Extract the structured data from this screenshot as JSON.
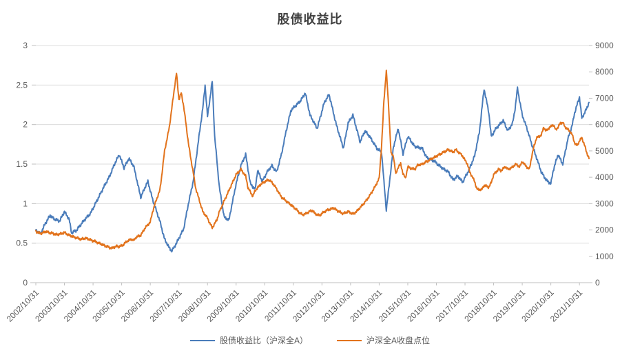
{
  "chart_data": {
    "type": "line",
    "title": "股债收益比",
    "x_tick_labels": [
      "2002/10/31",
      "2003/10/31",
      "2004/10/31",
      "2005/10/31",
      "2006/10/31",
      "2007/10/31",
      "2008/10/31",
      "2009/10/31",
      "2010/10/31",
      "2011/10/31",
      "2012/10/31",
      "2013/10/31",
      "2014/10/31",
      "2015/10/31",
      "2016/10/31",
      "2017/10/31",
      "2018/10/31",
      "2019/10/31",
      "2020/10/31",
      "2021/10/31"
    ],
    "x_months_total": 232,
    "x_months_per_tick": 12,
    "y_left": {
      "min": 0,
      "max": 3,
      "ticks": [
        0,
        0.5,
        1,
        1.5,
        2,
        2.5,
        3
      ]
    },
    "y_right": {
      "min": 0,
      "max": 9000,
      "ticks": [
        0,
        1000,
        2000,
        3000,
        4000,
        5000,
        6000,
        7000,
        8000,
        9000
      ]
    },
    "grid": "horizontal",
    "legend_position": "bottom",
    "colors": {
      "ratio_blue": "#4a7cba",
      "close_orange": "#e2731c",
      "grid": "#dcdcdc",
      "axis": "#bfbfbf",
      "text": "#595959",
      "title": "#404040"
    },
    "series": [
      {
        "name": "股债收益比（沪深全A）",
        "axis": "left",
        "color": "#4a7cba",
        "keypoints": [
          [
            0,
            0.66
          ],
          [
            2,
            0.62
          ],
          [
            4,
            0.75
          ],
          [
            6,
            0.85
          ],
          [
            8,
            0.8
          ],
          [
            10,
            0.78
          ],
          [
            12,
            0.9
          ],
          [
            13,
            0.85
          ],
          [
            14,
            0.8
          ],
          [
            15,
            0.63
          ],
          [
            17,
            0.66
          ],
          [
            20,
            0.78
          ],
          [
            23,
            0.88
          ],
          [
            25,
            1.0
          ],
          [
            28,
            1.18
          ],
          [
            31,
            1.35
          ],
          [
            33,
            1.5
          ],
          [
            35,
            1.62
          ],
          [
            37,
            1.45
          ],
          [
            39,
            1.57
          ],
          [
            41,
            1.48
          ],
          [
            44,
            1.08
          ],
          [
            46,
            1.22
          ],
          [
            47,
            1.28
          ],
          [
            49,
            1.05
          ],
          [
            52,
            0.78
          ],
          [
            54,
            0.55
          ],
          [
            56,
            0.44
          ],
          [
            57,
            0.4
          ],
          [
            59,
            0.5
          ],
          [
            62,
            0.68
          ],
          [
            64,
            1.0
          ],
          [
            66,
            1.28
          ],
          [
            68,
            1.75
          ],
          [
            70,
            2.2
          ],
          [
            71,
            2.5
          ],
          [
            72,
            2.1
          ],
          [
            74,
            2.55
          ],
          [
            75,
            1.85
          ],
          [
            77,
            1.2
          ],
          [
            79,
            0.83
          ],
          [
            81,
            0.79
          ],
          [
            82,
            0.95
          ],
          [
            84,
            1.25
          ],
          [
            86,
            1.48
          ],
          [
            88,
            1.62
          ],
          [
            90,
            1.25
          ],
          [
            92,
            1.18
          ],
          [
            93,
            1.42
          ],
          [
            95,
            1.28
          ],
          [
            97,
            1.4
          ],
          [
            99,
            1.48
          ],
          [
            101,
            1.4
          ],
          [
            103,
            1.62
          ],
          [
            105,
            1.92
          ],
          [
            107,
            2.18
          ],
          [
            109,
            2.24
          ],
          [
            111,
            2.3
          ],
          [
            113,
            2.4
          ],
          [
            115,
            2.12
          ],
          [
            118,
            1.95
          ],
          [
            121,
            2.28
          ],
          [
            123,
            2.38
          ],
          [
            126,
            2.0
          ],
          [
            129,
            1.7
          ],
          [
            131,
            2.02
          ],
          [
            133,
            2.12
          ],
          [
            136,
            1.78
          ],
          [
            138,
            1.92
          ],
          [
            140,
            1.85
          ],
          [
            143,
            1.7
          ],
          [
            145,
            1.65
          ],
          [
            146,
            1.28
          ],
          [
            147,
            0.92
          ],
          [
            149,
            1.45
          ],
          [
            150,
            1.72
          ],
          [
            152,
            1.95
          ],
          [
            154,
            1.63
          ],
          [
            156,
            1.85
          ],
          [
            159,
            1.72
          ],
          [
            162,
            1.7
          ],
          [
            164,
            1.58
          ],
          [
            167,
            1.54
          ],
          [
            170,
            1.46
          ],
          [
            173,
            1.4
          ],
          [
            175,
            1.3
          ],
          [
            177,
            1.35
          ],
          [
            179,
            1.27
          ],
          [
            182,
            1.45
          ],
          [
            184,
            1.6
          ],
          [
            186,
            1.9
          ],
          [
            188,
            2.45
          ],
          [
            190,
            2.15
          ],
          [
            191,
            1.85
          ],
          [
            193,
            1.95
          ],
          [
            196,
            2.05
          ],
          [
            198,
            1.92
          ],
          [
            200,
            2.02
          ],
          [
            201,
            2.2
          ],
          [
            202,
            2.46
          ],
          [
            204,
            2.12
          ],
          [
            206,
            1.95
          ],
          [
            208,
            1.75
          ],
          [
            210,
            1.58
          ],
          [
            212,
            1.4
          ],
          [
            214,
            1.3
          ],
          [
            216,
            1.25
          ],
          [
            217,
            1.42
          ],
          [
            219,
            1.62
          ],
          [
            221,
            1.5
          ],
          [
            223,
            1.8
          ],
          [
            225,
            2.0
          ],
          [
            226,
            2.15
          ],
          [
            228,
            2.35
          ],
          [
            229,
            2.08
          ],
          [
            231,
            2.2
          ],
          [
            232,
            2.28
          ]
        ]
      },
      {
        "name": "沪深全A收盘点位",
        "axis": "right",
        "color": "#e2731c",
        "keypoints": [
          [
            0,
            1950
          ],
          [
            2,
            1860
          ],
          [
            4,
            1940
          ],
          [
            7,
            1870
          ],
          [
            9,
            1820
          ],
          [
            12,
            1900
          ],
          [
            14,
            1800
          ],
          [
            17,
            1700
          ],
          [
            19,
            1650
          ],
          [
            21,
            1690
          ],
          [
            23,
            1620
          ],
          [
            25,
            1560
          ],
          [
            27,
            1480
          ],
          [
            29,
            1400
          ],
          [
            31,
            1330
          ],
          [
            32,
            1310
          ],
          [
            34,
            1390
          ],
          [
            35,
            1360
          ],
          [
            37,
            1460
          ],
          [
            38,
            1560
          ],
          [
            40,
            1650
          ],
          [
            41,
            1600
          ],
          [
            42,
            1720
          ],
          [
            44,
            1800
          ],
          [
            45,
            1950
          ],
          [
            46,
            2100
          ],
          [
            48,
            2300
          ],
          [
            49,
            2700
          ],
          [
            50,
            3000
          ],
          [
            52,
            3500
          ],
          [
            53,
            4200
          ],
          [
            54,
            5000
          ],
          [
            56,
            5900
          ],
          [
            57,
            6600
          ],
          [
            58,
            7300
          ],
          [
            59,
            7950
          ],
          [
            60,
            6950
          ],
          [
            61,
            7200
          ],
          [
            62,
            6700
          ],
          [
            63,
            6000
          ],
          [
            64,
            5300
          ],
          [
            65,
            4700
          ],
          [
            66,
            4200
          ],
          [
            67,
            3600
          ],
          [
            69,
            3000
          ],
          [
            70,
            2700
          ],
          [
            72,
            2450
          ],
          [
            73,
            2250
          ],
          [
            74,
            2080
          ],
          [
            76,
            2400
          ],
          [
            77,
            2700
          ],
          [
            79,
            3100
          ],
          [
            81,
            3500
          ],
          [
            83,
            3900
          ],
          [
            84,
            4100
          ],
          [
            86,
            4300
          ],
          [
            88,
            4050
          ],
          [
            89,
            3600
          ],
          [
            91,
            3280
          ],
          [
            92,
            3500
          ],
          [
            94,
            3700
          ],
          [
            95,
            3780
          ],
          [
            97,
            3880
          ],
          [
            98,
            3900
          ],
          [
            100,
            3700
          ],
          [
            102,
            3400
          ],
          [
            103,
            3250
          ],
          [
            105,
            3100
          ],
          [
            107,
            2950
          ],
          [
            109,
            2800
          ],
          [
            110,
            2700
          ],
          [
            112,
            2570
          ],
          [
            114,
            2660
          ],
          [
            116,
            2750
          ],
          [
            117,
            2620
          ],
          [
            119,
            2550
          ],
          [
            121,
            2700
          ],
          [
            123,
            2780
          ],
          [
            125,
            2830
          ],
          [
            127,
            2700
          ],
          [
            129,
            2620
          ],
          [
            131,
            2700
          ],
          [
            133,
            2600
          ],
          [
            135,
            2740
          ],
          [
            136,
            2850
          ],
          [
            138,
            3050
          ],
          [
            140,
            3300
          ],
          [
            142,
            3600
          ],
          [
            144,
            3950
          ],
          [
            145,
            5200
          ],
          [
            146,
            6900
          ],
          [
            147,
            8050
          ],
          [
            148,
            6600
          ],
          [
            149,
            4900
          ],
          [
            150,
            4800
          ],
          [
            151,
            4100
          ],
          [
            152,
            4400
          ],
          [
            153,
            4500
          ],
          [
            154,
            4150
          ],
          [
            155,
            3950
          ],
          [
            156,
            4400
          ],
          [
            157,
            4350
          ],
          [
            159,
            4300
          ],
          [
            160,
            4450
          ],
          [
            162,
            4500
          ],
          [
            164,
            4600
          ],
          [
            166,
            4700
          ],
          [
            168,
            4800
          ],
          [
            169,
            4850
          ],
          [
            171,
            4950
          ],
          [
            173,
            5050
          ],
          [
            175,
            4950
          ],
          [
            176,
            5050
          ],
          [
            178,
            4900
          ],
          [
            179,
            4800
          ],
          [
            181,
            4500
          ],
          [
            182,
            4200
          ],
          [
            184,
            3850
          ],
          [
            185,
            3550
          ],
          [
            187,
            3520
          ],
          [
            188,
            3700
          ],
          [
            190,
            3620
          ],
          [
            191,
            3800
          ],
          [
            192,
            4100
          ],
          [
            194,
            4300
          ],
          [
            195,
            4250
          ],
          [
            197,
            4400
          ],
          [
            198,
            4300
          ],
          [
            200,
            4380
          ],
          [
            201,
            4500
          ],
          [
            203,
            4400
          ],
          [
            204,
            4600
          ],
          [
            205,
            4480
          ],
          [
            207,
            4300
          ],
          [
            208,
            4800
          ],
          [
            209,
            5200
          ],
          [
            210,
            5500
          ],
          [
            212,
            5600
          ],
          [
            213,
            5900
          ],
          [
            214,
            5750
          ],
          [
            215,
            5850
          ],
          [
            217,
            6000
          ],
          [
            218,
            5800
          ],
          [
            219,
            5900
          ],
          [
            220,
            6050
          ],
          [
            221,
            6080
          ],
          [
            222,
            5900
          ],
          [
            224,
            5750
          ],
          [
            225,
            5600
          ],
          [
            226,
            5300
          ],
          [
            227,
            5200
          ],
          [
            228,
            5380
          ],
          [
            229,
            5500
          ],
          [
            230,
            5250
          ],
          [
            231,
            4950
          ],
          [
            232,
            4720
          ]
        ]
      }
    ]
  }
}
